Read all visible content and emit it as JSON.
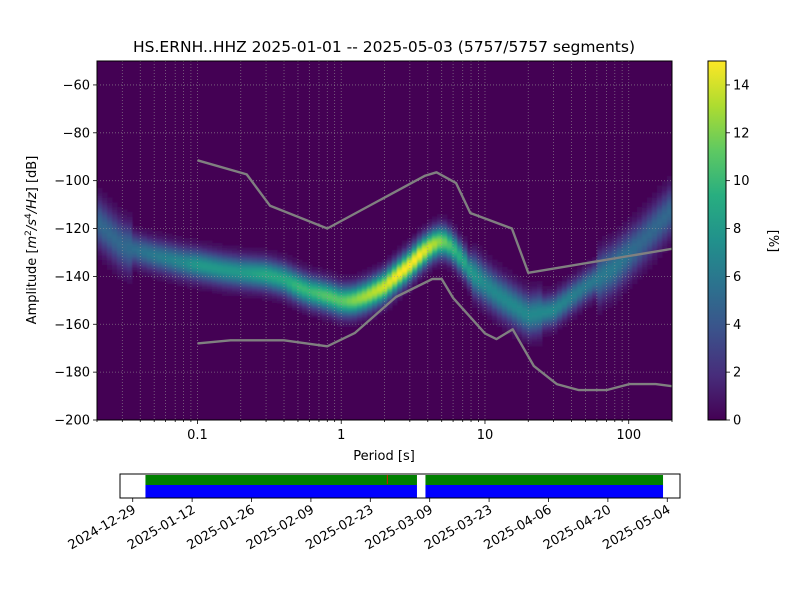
{
  "chart_data": [
    {
      "type": "heatmap",
      "title": "HS.ERNH..HHZ   2025-01-01 -- 2025-05-03  (5757/5757 segments)",
      "xlabel": "Period [s]",
      "ylabel_main": "Amplitude [",
      "ylabel_unit_m": "m",
      "ylabel_unit_sup1": "2",
      "ylabel_unit_mid": "/s",
      "ylabel_unit_sup2": "4",
      "ylabel_unit_hz": "/Hz",
      "ylabel_tail": "] [dB]",
      "x_scale": "log",
      "xlim": [
        0.02,
        200
      ],
      "ylim": [
        -200,
        -50
      ],
      "x_ticks": [
        {
          "value": 0.1,
          "label": "0.1"
        },
        {
          "value": 1,
          "label": "1"
        },
        {
          "value": 10,
          "label": "10"
        },
        {
          "value": 100,
          "label": "100"
        }
      ],
      "y_ticks": [
        {
          "value": -60,
          "label": "−60"
        },
        {
          "value": -80,
          "label": "−80"
        },
        {
          "value": -100,
          "label": "−100"
        },
        {
          "value": -120,
          "label": "−120"
        },
        {
          "value": -140,
          "label": "−140"
        },
        {
          "value": -160,
          "label": "−160"
        },
        {
          "value": -180,
          "label": "−180"
        },
        {
          "value": -200,
          "label": "−200"
        }
      ],
      "grid": true,
      "colormap": "viridis",
      "colorbar": {
        "label": "[%]",
        "range": [
          0,
          15
        ],
        "ticks": [
          {
            "value": 0,
            "label": "0"
          },
          {
            "value": 2,
            "label": "2"
          },
          {
            "value": 4,
            "label": "4"
          },
          {
            "value": 6,
            "label": "6"
          },
          {
            "value": 8,
            "label": "8"
          },
          {
            "value": 10,
            "label": "10"
          },
          {
            "value": 12,
            "label": "12"
          },
          {
            "value": 14,
            "label": "14"
          }
        ]
      },
      "mode_curve": {
        "period": [
          0.02,
          0.03,
          0.05,
          0.08,
          0.1,
          0.15,
          0.2,
          0.3,
          0.4,
          0.5,
          0.6,
          0.8,
          1.0,
          1.2,
          1.5,
          2.0,
          2.5,
          3.0,
          3.5,
          4.0,
          4.5,
          5.0,
          5.5,
          6.0,
          7.0,
          8.0,
          10,
          12,
          15,
          20,
          30,
          50,
          80,
          120,
          200
        ],
        "db": [
          -117,
          -127,
          -131,
          -134,
          -135,
          -137,
          -138,
          -139,
          -141,
          -144,
          -146,
          -148,
          -150,
          -150,
          -148,
          -144,
          -139,
          -135,
          -131,
          -128,
          -126,
          -125,
          -126,
          -128,
          -133,
          -138,
          -143,
          -147,
          -151,
          -156,
          -154,
          -144,
          -136,
          -126,
          -112
        ],
        "peak_percent": [
          5,
          5,
          6,
          7,
          8,
          8,
          8,
          9,
          9,
          10,
          10,
          11,
          11,
          12,
          13,
          14,
          15,
          15,
          15,
          14,
          13,
          12,
          11,
          10,
          9,
          8,
          7,
          7,
          7,
          7,
          7,
          6,
          6,
          5,
          5
        ]
      },
      "noise_model_high": {
        "period": [
          0.1,
          0.22,
          0.32,
          0.8,
          3.8,
          4.6,
          6.3,
          7.9,
          15.4,
          20,
          354
        ],
        "db": [
          -91.5,
          -97.4,
          -110.5,
          -120.0,
          -98.0,
          -96.5,
          -101.0,
          -113.5,
          -120.0,
          -138.5,
          -126.0
        ]
      },
      "noise_model_low": {
        "period": [
          0.1,
          0.17,
          0.4,
          0.8,
          1.24,
          2.4,
          4.3,
          5.0,
          6.0,
          10.0,
          12.0,
          15.6,
          21.9,
          31.6,
          45,
          70,
          101,
          154,
          328
        ],
        "db": [
          -168.0,
          -166.7,
          -166.7,
          -169.2,
          -163.7,
          -148.6,
          -141.1,
          -141.1,
          -149.0,
          -163.8,
          -166.2,
          -162.1,
          -177.5,
          -185.0,
          -187.5,
          -187.5,
          -185.0,
          -185.0,
          -187.5
        ]
      }
    },
    {
      "type": "bar",
      "dates": [
        "2025-01-01",
        "2025-05-03"
      ],
      "gaps": [
        [
          "2025-03-06",
          "2025-03-08"
        ]
      ],
      "x_range": [
        "2024-12-26",
        "2025-05-07"
      ],
      "x_ticks": [
        "2024-12-29",
        "2025-01-12",
        "2025-01-26",
        "2025-02-09",
        "2025-02-23",
        "2025-03-09",
        "2025-03-23",
        "2025-04-06",
        "2025-04-20",
        "2025-05-04"
      ],
      "marker_date": "2025-02-27",
      "colors": {
        "coverage": "#0000ff",
        "ppsd_used": "#008000",
        "marker": "#ff0000"
      }
    }
  ]
}
